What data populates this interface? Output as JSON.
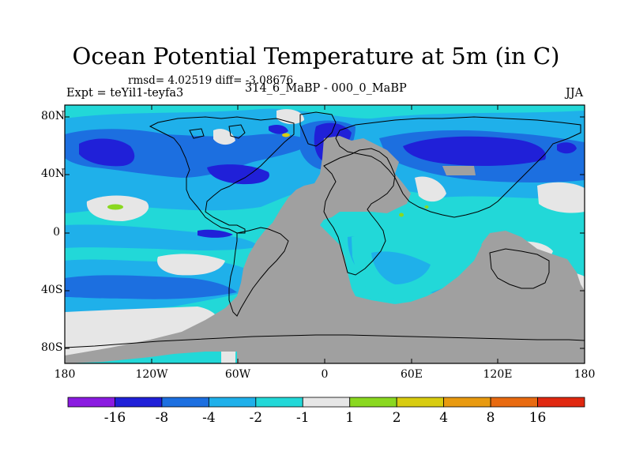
{
  "title": "Ocean Potential Temperature at 5m (in C)",
  "stats_text": "rmsd= 4.02519 diff= -3.08676",
  "experiment_label": "Expt = teYil1-teyfa3",
  "period_label": "314_6_MaBP - 000_0_MaBP",
  "season_label": "JJA",
  "lat_ticks": [
    "80N",
    "40N",
    "0",
    "40S",
    "80S"
  ],
  "lon_ticks": [
    "180",
    "120W",
    "60W",
    "0",
    "60E",
    "120E",
    "180"
  ],
  "colorbar": {
    "colors": [
      "#8a1be0",
      "#2020d8",
      "#1c6fe0",
      "#1fb0ea",
      "#22d8d8",
      "#e6e6e6",
      "#8ad820",
      "#d8cc10",
      "#e89a10",
      "#e86a10",
      "#e02810"
    ],
    "tick_labels": [
      "-16",
      "-8",
      "-4",
      "-2",
      "-1",
      "1",
      "2",
      "4",
      "8",
      "16"
    ]
  },
  "colors": {
    "land": "#a0a0a0",
    "background_ocean": "#22d8d8"
  }
}
